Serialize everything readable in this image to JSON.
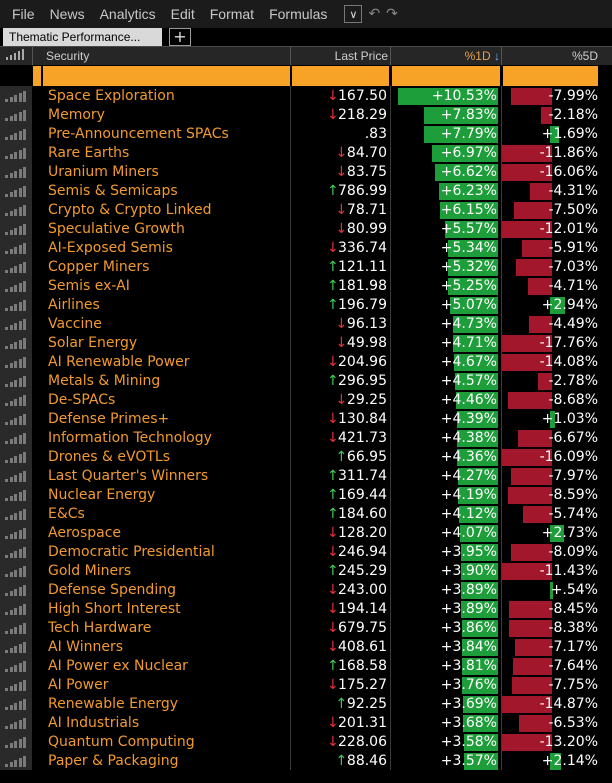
{
  "menu": {
    "items": [
      "File",
      "News",
      "Analytics",
      "Edit",
      "Format",
      "Formulas"
    ]
  },
  "tab": {
    "title": "Thematic Performance...",
    "add_label": "+"
  },
  "columns": {
    "security": "Security",
    "last_price": "Last Price",
    "pct_1d": "%1D",
    "pct_1d_sort": "↓",
    "pct_5d": "%5D"
  },
  "colors": {
    "accent": "#f6a327",
    "up_bar": "#1e9e3a",
    "down_bar": "#a3172d",
    "up_arrow": "#3ecf5a",
    "down_arrow": "#e8313a",
    "name": "#f29a2f"
  },
  "rows": [
    {
      "name": "Space Exploration",
      "dir": "down",
      "price": "167.50",
      "d1": "+10.53%",
      "d1v": 10.53,
      "d5": "-7.99%",
      "d5v": -7.99
    },
    {
      "name": "Memory",
      "dir": "down",
      "price": "218.29",
      "d1": "+7.83%",
      "d1v": 7.83,
      "d5": "-2.18%",
      "d5v": -2.18
    },
    {
      "name": "Pre-Announcement SPACs",
      "dir": "none",
      "price": ".83",
      "d1": "+7.79%",
      "d1v": 7.79,
      "d5": "+1.69%",
      "d5v": 1.69
    },
    {
      "name": "Rare Earths",
      "dir": "down",
      "price": "84.70",
      "d1": "+6.97%",
      "d1v": 6.97,
      "d5": "-11.86%",
      "d5v": -11.86
    },
    {
      "name": "Uranium Miners",
      "dir": "down",
      "price": "83.75",
      "d1": "+6.62%",
      "d1v": 6.62,
      "d5": "-16.06%",
      "d5v": -16.06
    },
    {
      "name": "Semis & Semicaps",
      "dir": "up",
      "price": "786.99",
      "d1": "+6.23%",
      "d1v": 6.23,
      "d5": "-4.31%",
      "d5v": -4.31
    },
    {
      "name": "Crypto & Crypto Linked",
      "dir": "down",
      "price": "78.71",
      "d1": "+6.15%",
      "d1v": 6.15,
      "d5": "-7.50%",
      "d5v": -7.5
    },
    {
      "name": "Speculative Growth",
      "dir": "down",
      "price": "80.99",
      "d1": "+5.57%",
      "d1v": 5.57,
      "d5": "-12.01%",
      "d5v": -12.01
    },
    {
      "name": "AI-Exposed Semis",
      "dir": "down",
      "price": "336.74",
      "d1": "+5.34%",
      "d1v": 5.34,
      "d5": "-5.91%",
      "d5v": -5.91
    },
    {
      "name": "Copper Miners",
      "dir": "up",
      "price": "121.11",
      "d1": "+5.32%",
      "d1v": 5.32,
      "d5": "-7.03%",
      "d5v": -7.03
    },
    {
      "name": "Semis ex-AI",
      "dir": "up",
      "price": "181.98",
      "d1": "+5.25%",
      "d1v": 5.25,
      "d5": "-4.71%",
      "d5v": -4.71
    },
    {
      "name": "Airlines",
      "dir": "up",
      "price": "196.79",
      "d1": "+5.07%",
      "d1v": 5.07,
      "d5": "+2.94%",
      "d5v": 2.94
    },
    {
      "name": "Vaccine",
      "dir": "down",
      "price": "96.13",
      "d1": "+4.73%",
      "d1v": 4.73,
      "d5": "-4.49%",
      "d5v": -4.49
    },
    {
      "name": "Solar Energy",
      "dir": "down",
      "price": "49.98",
      "d1": "+4.71%",
      "d1v": 4.71,
      "d5": "-17.76%",
      "d5v": -17.76
    },
    {
      "name": "AI Renewable Power",
      "dir": "down",
      "price": "204.96",
      "d1": "+4.67%",
      "d1v": 4.67,
      "d5": "-14.08%",
      "d5v": -14.08
    },
    {
      "name": "Metals & Mining",
      "dir": "up",
      "price": "296.95",
      "d1": "+4.57%",
      "d1v": 4.57,
      "d5": "-2.78%",
      "d5v": -2.78
    },
    {
      "name": "De-SPACs",
      "dir": "down",
      "price": "29.25",
      "d1": "+4.46%",
      "d1v": 4.46,
      "d5": "-8.68%",
      "d5v": -8.68
    },
    {
      "name": "Defense Primes+",
      "dir": "down",
      "price": "130.84",
      "d1": "+4.39%",
      "d1v": 4.39,
      "d5": "+1.03%",
      "d5v": 1.03
    },
    {
      "name": "Information Technology",
      "dir": "down",
      "price": "421.73",
      "d1": "+4.38%",
      "d1v": 4.38,
      "d5": "-6.67%",
      "d5v": -6.67
    },
    {
      "name": "Drones & eVOTLs",
      "dir": "up",
      "price": "66.95",
      "d1": "+4.36%",
      "d1v": 4.36,
      "d5": "-16.09%",
      "d5v": -16.09
    },
    {
      "name": "Last Quarter's Winners",
      "dir": "up",
      "price": "311.74",
      "d1": "+4.27%",
      "d1v": 4.27,
      "d5": "-7.97%",
      "d5v": -7.97
    },
    {
      "name": "Nuclear Energy",
      "dir": "up",
      "price": "169.44",
      "d1": "+4.19%",
      "d1v": 4.19,
      "d5": "-8.59%",
      "d5v": -8.59
    },
    {
      "name": "E&Cs",
      "dir": "up",
      "price": "184.60",
      "d1": "+4.12%",
      "d1v": 4.12,
      "d5": "-5.74%",
      "d5v": -5.74
    },
    {
      "name": "Aerospace",
      "dir": "down",
      "price": "128.20",
      "d1": "+4.07%",
      "d1v": 4.07,
      "d5": "+2.73%",
      "d5v": 2.73
    },
    {
      "name": "Democratic Presidential",
      "dir": "down",
      "price": "246.94",
      "d1": "+3.95%",
      "d1v": 3.95,
      "d5": "-8.09%",
      "d5v": -8.09
    },
    {
      "name": "Gold Miners",
      "dir": "up",
      "price": "245.29",
      "d1": "+3.90%",
      "d1v": 3.9,
      "d5": "-11.43%",
      "d5v": -11.43
    },
    {
      "name": "Defense Spending",
      "dir": "down",
      "price": "243.00",
      "d1": "+3.89%",
      "d1v": 3.89,
      "d5": "+.54%",
      "d5v": 0.54
    },
    {
      "name": "High Short Interest",
      "dir": "down",
      "price": "194.14",
      "d1": "+3.89%",
      "d1v": 3.89,
      "d5": "-8.45%",
      "d5v": -8.45
    },
    {
      "name": "Tech Hardware",
      "dir": "down",
      "price": "679.75",
      "d1": "+3.86%",
      "d1v": 3.86,
      "d5": "-8.38%",
      "d5v": -8.38
    },
    {
      "name": "AI Winners",
      "dir": "down",
      "price": "408.61",
      "d1": "+3.84%",
      "d1v": 3.84,
      "d5": "-7.17%",
      "d5v": -7.17
    },
    {
      "name": "AI Power ex Nuclear",
      "dir": "up",
      "price": "168.58",
      "d1": "+3.81%",
      "d1v": 3.81,
      "d5": "-7.64%",
      "d5v": -7.64
    },
    {
      "name": "AI Power",
      "dir": "down",
      "price": "175.27",
      "d1": "+3.76%",
      "d1v": 3.76,
      "d5": "-7.75%",
      "d5v": -7.75
    },
    {
      "name": "Renewable Energy",
      "dir": "up",
      "price": "92.25",
      "d1": "+3.69%",
      "d1v": 3.69,
      "d5": "-14.87%",
      "d5v": -14.87
    },
    {
      "name": "AI Industrials",
      "dir": "down",
      "price": "201.31",
      "d1": "+3.68%",
      "d1v": 3.68,
      "d5": "-6.53%",
      "d5v": -6.53
    },
    {
      "name": "Quantum Computing",
      "dir": "down",
      "price": "228.06",
      "d1": "+3.58%",
      "d1v": 3.58,
      "d5": "-13.20%",
      "d5v": -13.2
    },
    {
      "name": "Paper & Packaging",
      "dir": "up",
      "price": "88.46",
      "d1": "+3.57%",
      "d1v": 3.57,
      "d5": "+2.14%",
      "d5v": 2.14
    }
  ]
}
